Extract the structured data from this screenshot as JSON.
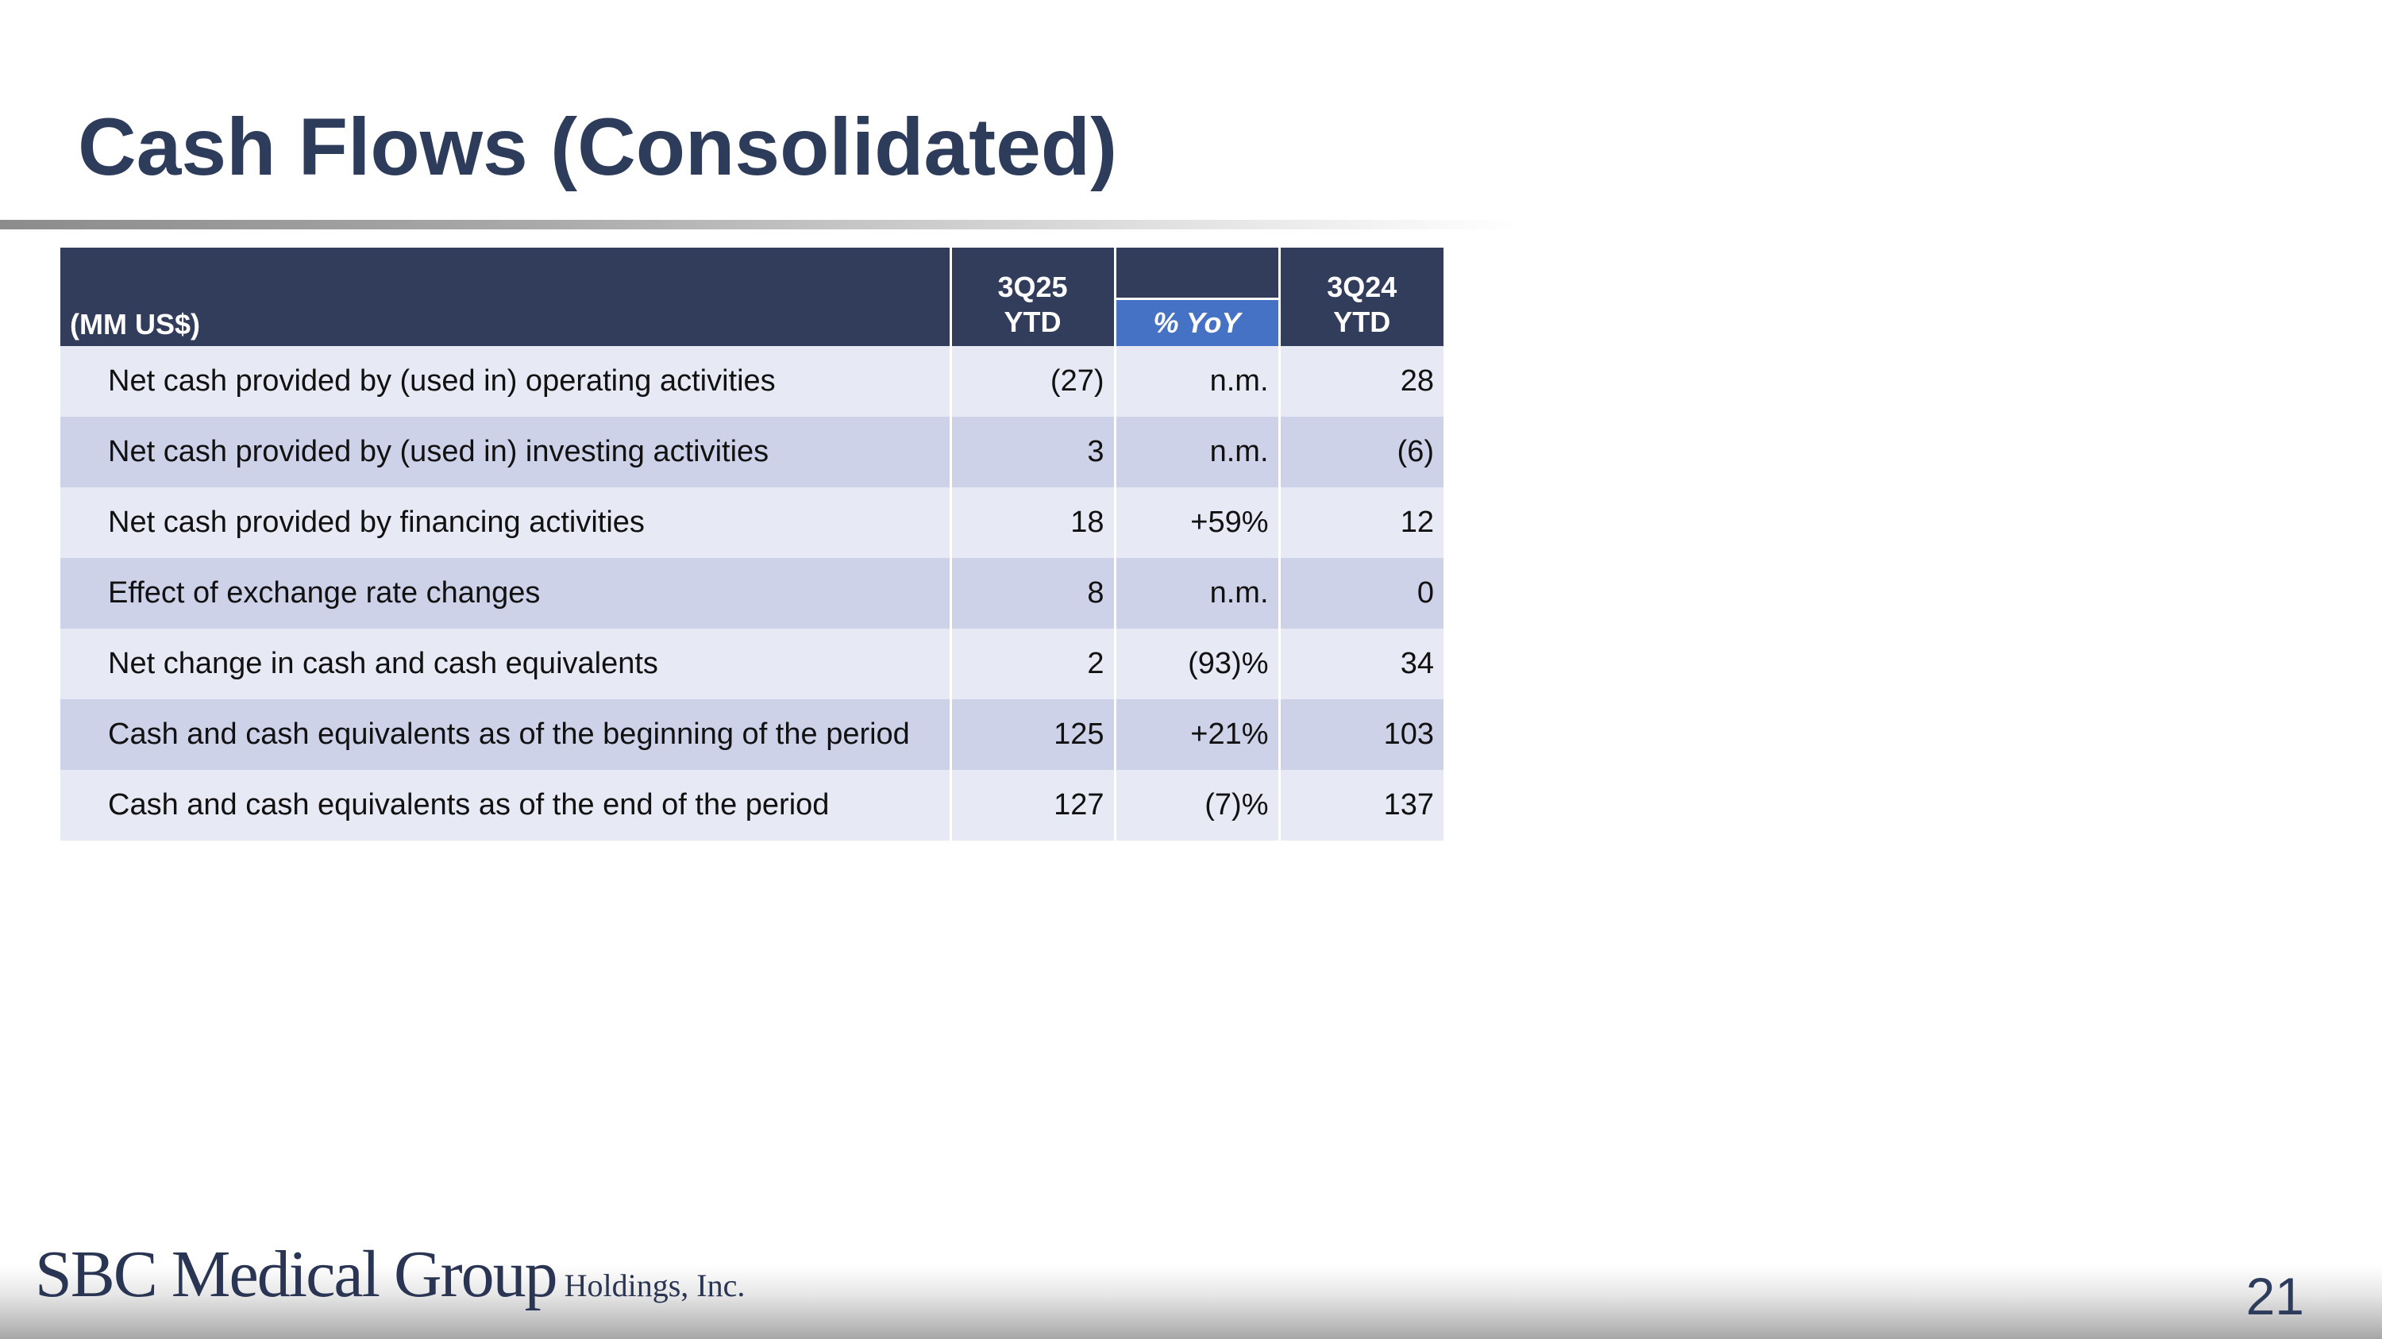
{
  "slide": {
    "title": "Cash Flows (Consolidated)",
    "page_number": "21"
  },
  "table": {
    "header": {
      "unit": "(MM US$)",
      "col_current_line1": "3Q25",
      "col_current_line2": "YTD",
      "col_yoy": "% YoY",
      "col_prior_line1": "3Q24",
      "col_prior_line2": "YTD"
    },
    "rows": [
      {
        "label": "Net cash provided by (used in) operating activities",
        "current": "(27)",
        "yoy": "n.m.",
        "prior": "28"
      },
      {
        "label": "Net cash provided by (used in) investing activities",
        "current": "3",
        "yoy": "n.m.",
        "prior": "(6)"
      },
      {
        "label": "Net cash provided by financing activities",
        "current": "18",
        "yoy": "+59%",
        "prior": "12"
      },
      {
        "label": "Effect of exchange rate changes",
        "current": "8",
        "yoy": "n.m.",
        "prior": "0"
      },
      {
        "label": "Net change in cash and cash equivalents",
        "current": "2",
        "yoy": "(93)%",
        "prior": "34"
      },
      {
        "label": "Cash and cash equivalents as of the beginning of the period",
        "current": "125",
        "yoy": "+21%",
        "prior": "103"
      },
      {
        "label": "Cash and cash equivalents as of the end of the period",
        "current": "127",
        "yoy": "(7)%",
        "prior": "137"
      }
    ]
  },
  "logo": {
    "main": "SBC Medical Group",
    "sub": "Holdings, Inc."
  },
  "colors": {
    "title": "#2e3c5c",
    "header_bg": "#313d5a",
    "yoy_badge": "#4572c4",
    "row_light": "#e7e9f5",
    "row_dark": "#ced2e9"
  }
}
